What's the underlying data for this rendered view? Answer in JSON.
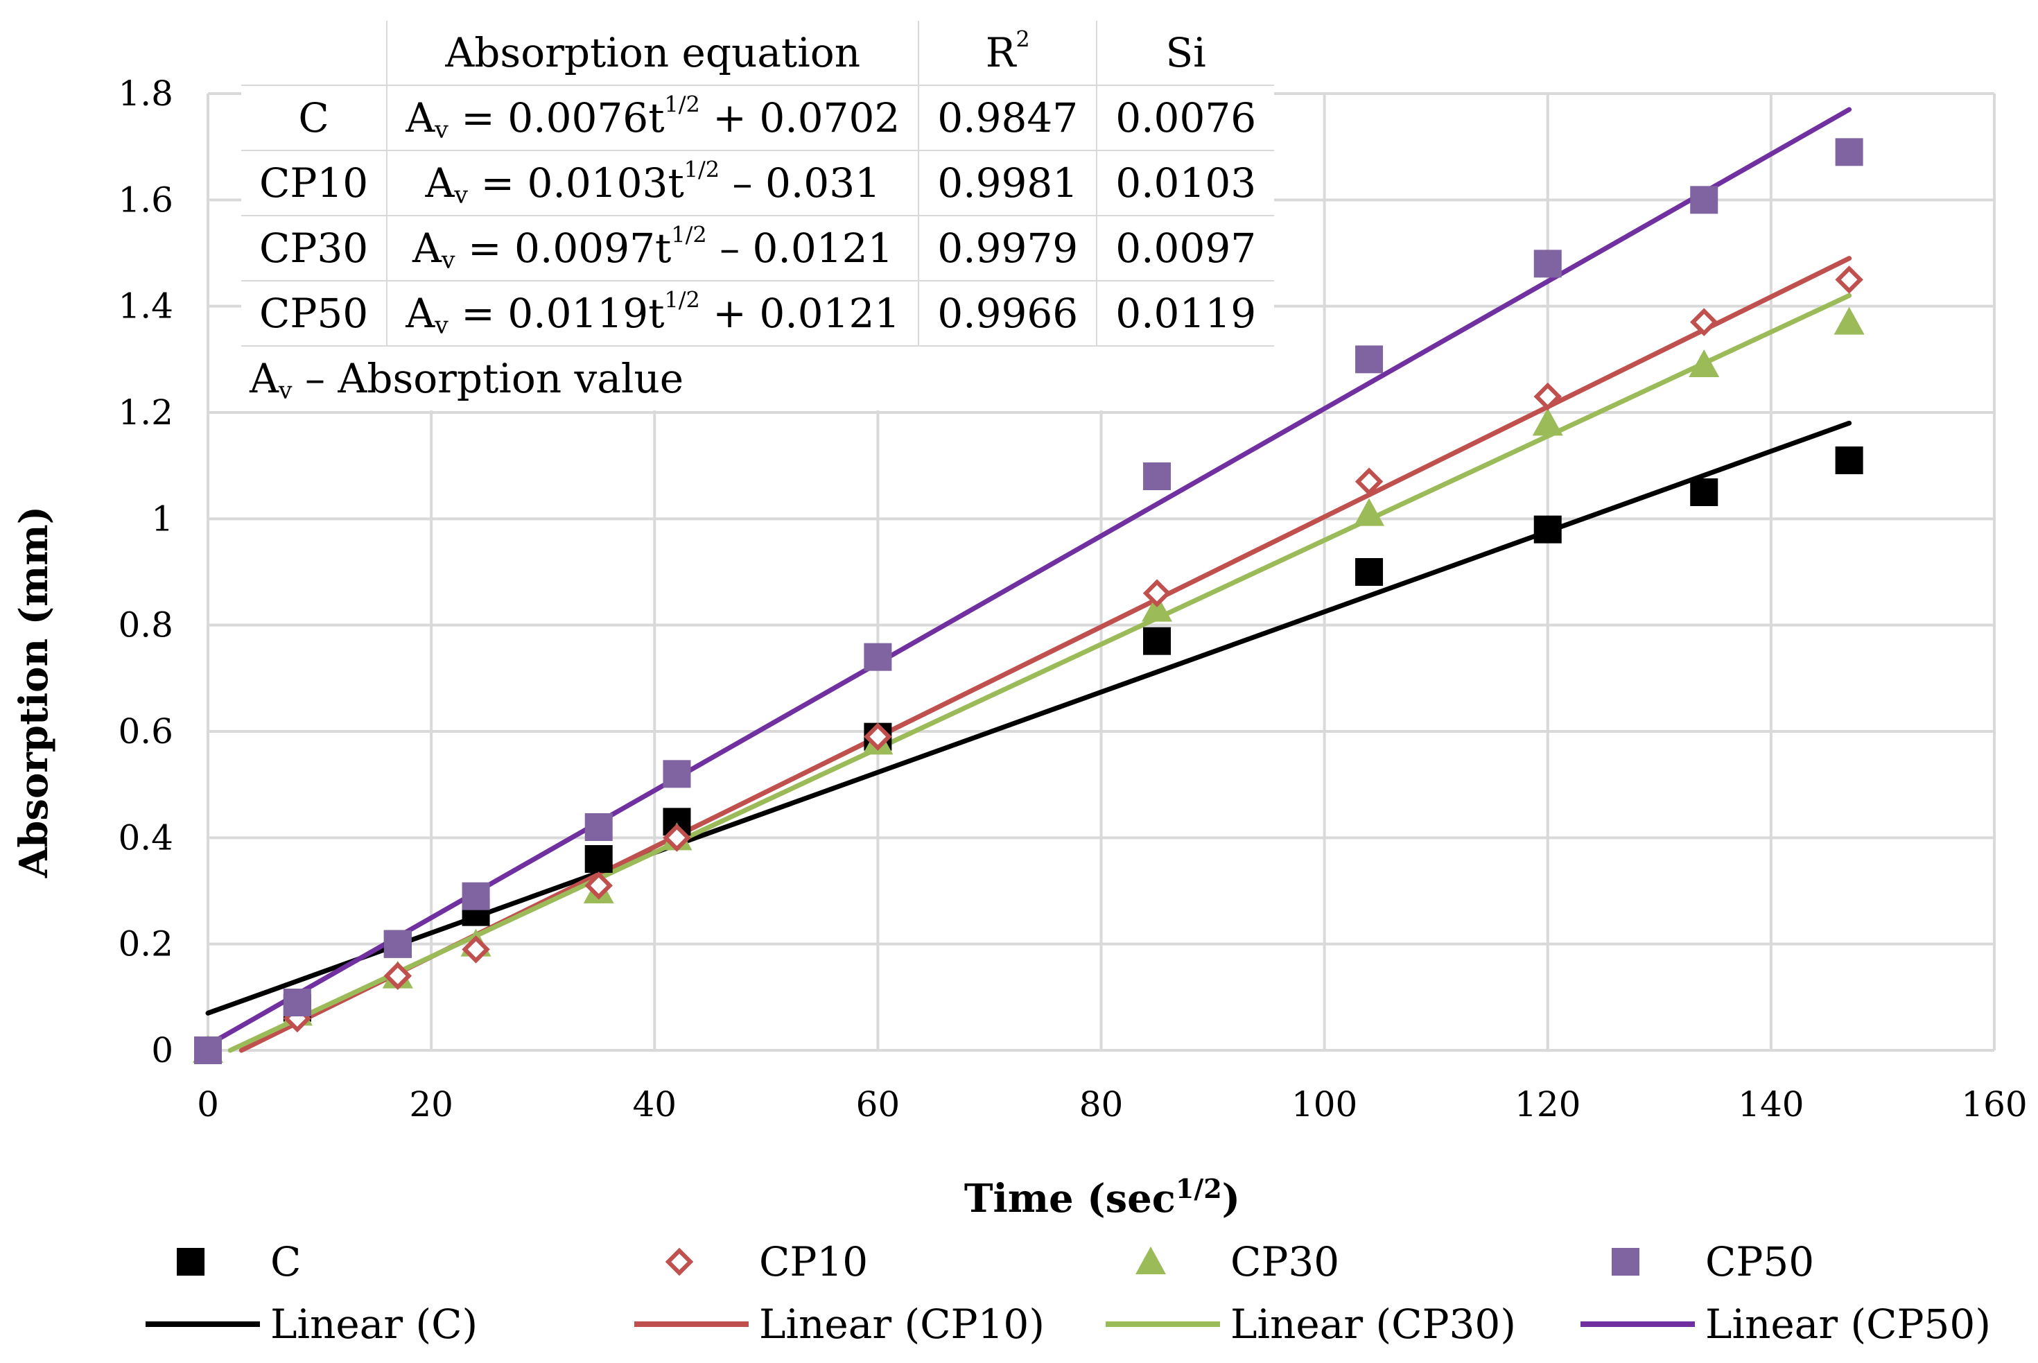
{
  "chart_data": {
    "type": "scatter",
    "title": "",
    "xlabel": "Time (sec",
    "xlabel_sup": "1/2",
    "xlabel_end": ")",
    "ylabel": "Absorption (mm)",
    "xlim": [
      0,
      160
    ],
    "ylim": [
      0,
      1.8
    ],
    "xticks": [
      0,
      20,
      40,
      60,
      80,
      100,
      120,
      140,
      160
    ],
    "yticks": [
      0,
      0.2,
      0.4,
      0.6,
      0.8,
      1,
      1.2,
      1.4,
      1.6,
      1.8
    ],
    "xtick_labels": [
      "0",
      "20",
      "40",
      "60",
      "80",
      "100",
      "120",
      "140",
      "160"
    ],
    "ytick_labels": [
      "0",
      "0.2",
      "0.4",
      "0.6",
      "0.8",
      "1",
      "1.2",
      "1.4",
      "1.6",
      "1.8"
    ],
    "grid": true,
    "legend_position": "bottom",
    "x": [
      0,
      8,
      17,
      24,
      35,
      42,
      60,
      85,
      104,
      120,
      134,
      147
    ],
    "series": [
      {
        "name": "C",
        "marker": "square",
        "color": "#000000",
        "values": [
          0,
          0.08,
          0.2,
          0.26,
          0.36,
          0.43,
          0.59,
          0.77,
          0.9,
          0.98,
          1.05,
          1.11
        ],
        "fit_label": "Linear (C)",
        "fit_color": "#000000",
        "fit_range": [
          0,
          147
        ],
        "fit_line": [
          0.07,
          1.18
        ]
      },
      {
        "name": "CP10",
        "marker": "diamond-open",
        "color": "#c0504d",
        "values": [
          0,
          0.06,
          0.14,
          0.19,
          0.31,
          0.4,
          0.59,
          0.86,
          1.07,
          1.23,
          1.37,
          1.45
        ],
        "fit_label": "Linear (CP10)",
        "fit_color": "#c0504d",
        "fit_range": [
          3,
          147
        ],
        "fit_line": [
          0,
          1.49
        ]
      },
      {
        "name": "CP30",
        "marker": "triangle",
        "color": "#9bbb59",
        "values": [
          0,
          0.07,
          0.14,
          0.2,
          0.3,
          0.4,
          0.58,
          0.83,
          1.01,
          1.18,
          1.29,
          1.37
        ],
        "fit_label": "Linear (CP30)",
        "fit_color": "#9bbb59",
        "fit_range": [
          2,
          147
        ],
        "fit_line": [
          0,
          1.42
        ]
      },
      {
        "name": "CP50",
        "marker": "square",
        "color": "#8064a2",
        "values": [
          0,
          0.09,
          0.2,
          0.29,
          0.42,
          0.52,
          0.74,
          1.08,
          1.3,
          1.48,
          1.6,
          1.69
        ],
        "fit_label": "Linear (CP50)",
        "fit_color": "#7030a0",
        "fit_range": [
          0,
          147
        ],
        "fit_line": [
          0.01,
          1.77
        ]
      }
    ],
    "annotation_table": {
      "headers": [
        "",
        "Absorption equation",
        "R",
        "Si"
      ],
      "header_sup": "2",
      "rows": [
        {
          "sample": "C",
          "eq_a": "A",
          "eq_sub": "v",
          "eq_mid": " = 0.0076t",
          "eq_sup": "1/2",
          "eq_end": " + 0.0702",
          "r2": "0.9847",
          "si": "0.0076"
        },
        {
          "sample": "CP10",
          "eq_a": "A",
          "eq_sub": "v",
          "eq_mid": " = 0.0103t",
          "eq_sup": "1/2",
          "eq_end": " – 0.031",
          "r2": "0.9981",
          "si": "0.0103"
        },
        {
          "sample": "CP30",
          "eq_a": "A",
          "eq_sub": "v",
          "eq_mid": " = 0.0097t",
          "eq_sup": "1/2",
          "eq_end": " – 0.0121",
          "r2": "0.9979",
          "si": "0.0097"
        },
        {
          "sample": "CP50",
          "eq_a": "A",
          "eq_sub": "v",
          "eq_mid": " = 0.0119t",
          "eq_sup": "1/2",
          "eq_end": " + 0.0121",
          "r2": "0.9966",
          "si": "0.0119"
        }
      ],
      "note_a": "A",
      "note_sub": "v",
      "note_text": " – Absorption value"
    }
  }
}
